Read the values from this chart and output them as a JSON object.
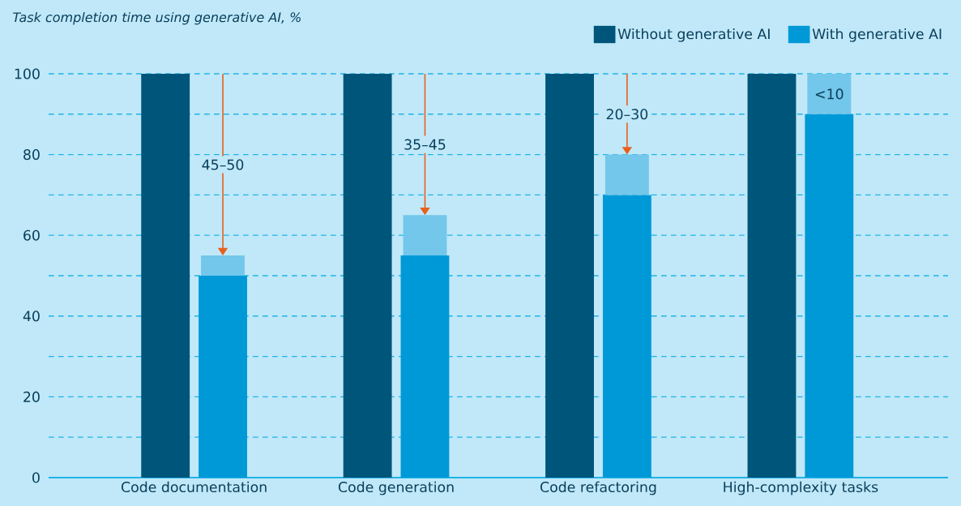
{
  "chart_data": {
    "type": "bar",
    "title": "Task completion time using generative AI, %",
    "categories": [
      "Code documentation",
      "Code generation",
      "Code refactoring",
      "High-complexity tasks"
    ],
    "series": [
      {
        "name": "Without generative AI",
        "color": "#00557a",
        "values": [
          100,
          100,
          100,
          100
        ]
      },
      {
        "name": "With generative AI",
        "color": "#0099d8",
        "values": [
          50,
          55,
          70,
          90
        ]
      },
      {
        "color": "#73c7ea",
        "base": [
          50,
          55,
          70,
          90
        ],
        "values": [
          5,
          10,
          10,
          10
        ]
      }
    ],
    "ylim": [
      0,
      100
    ],
    "yticks": [
      0,
      {
        "value": 10,
        "label": null
      },
      20,
      {
        "value": 30,
        "label": null
      },
      40,
      {
        "value": 50,
        "label": null
      },
      60,
      {
        "value": 70,
        "label": null
      },
      80,
      {
        "value": 90,
        "label": null
      },
      100
    ],
    "grid": "y",
    "legend": "top right",
    "annotations": [
      "45–50",
      "35–45",
      "20–30",
      "<10"
    ]
  }
}
